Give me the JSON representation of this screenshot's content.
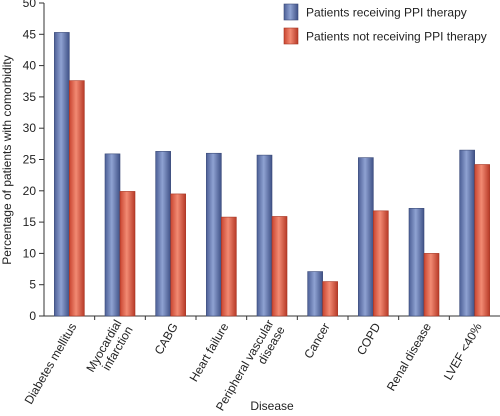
{
  "chart_data": {
    "type": "bar",
    "title": "",
    "xlabel": "Disease",
    "ylabel": "Percentage of patients with comorbidity",
    "ylim": [
      0,
      50
    ],
    "yticks": [
      0,
      5,
      10,
      15,
      20,
      25,
      30,
      35,
      40,
      45,
      50
    ],
    "grid": false,
    "legend_position": "top-right",
    "categories": [
      [
        "Diabetes mellitus"
      ],
      [
        "Myocardial",
        "infarction"
      ],
      [
        "CABG"
      ],
      [
        "Heart failure"
      ],
      [
        "Peripheral vascular",
        "disease"
      ],
      [
        "Cancer"
      ],
      [
        "COPD"
      ],
      [
        "Renal disease"
      ],
      [
        "LVEF <40%"
      ]
    ],
    "series": [
      {
        "name": "Patients receiving PPI therapy",
        "color": "#6A7FB3",
        "values": [
          45.3,
          25.9,
          26.3,
          26.0,
          25.7,
          7.1,
          25.3,
          17.2,
          26.5
        ]
      },
      {
        "name": "Patients not receiving PPI therapy",
        "color": "#E2604A",
        "values": [
          37.6,
          19.9,
          19.5,
          15.8,
          15.9,
          5.5,
          16.8,
          10.0,
          24.2
        ]
      }
    ]
  }
}
